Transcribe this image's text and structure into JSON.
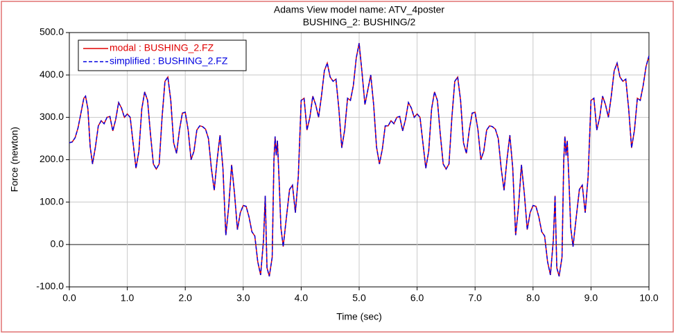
{
  "chart_data": {
    "type": "line",
    "title": "Adams View model name: ATV_4poster",
    "subtitle": "BUSHING_2: BUSHING/2",
    "x_label": "Time (sec)",
    "y_label": "Force (newton)",
    "x": [
      0,
      0.05,
      0.1,
      0.15,
      0.2,
      0.25,
      0.28,
      0.32,
      0.36,
      0.4,
      0.45,
      0.5,
      0.55,
      0.6,
      0.65,
      0.7,
      0.75,
      0.8,
      0.85,
      0.9,
      0.95,
      1.0,
      1.05,
      1.1,
      1.15,
      1.2,
      1.25,
      1.3,
      1.35,
      1.4,
      1.45,
      1.5,
      1.55,
      1.6,
      1.65,
      1.7,
      1.75,
      1.8,
      1.85,
      1.9,
      1.95,
      2.0,
      2.05,
      2.1,
      2.15,
      2.2,
      2.25,
      2.3,
      2.35,
      2.4,
      2.45,
      2.5,
      2.55,
      2.6,
      2.65,
      2.7,
      2.75,
      2.8,
      2.85,
      2.9,
      2.95,
      3.0,
      3.05,
      3.1,
      3.15,
      3.2,
      3.25,
      3.3,
      3.35,
      3.38,
      3.41,
      3.45,
      3.5,
      3.53,
      3.55,
      3.57,
      3.59,
      3.62,
      3.65,
      3.69,
      3.75,
      3.8,
      3.85,
      3.9,
      3.95,
      4.0,
      4.05,
      4.1,
      4.15,
      4.2,
      4.25,
      4.3,
      4.35,
      4.4,
      4.45,
      4.5,
      4.55,
      4.6,
      4.65,
      4.7,
      4.75,
      4.8,
      4.85,
      4.9,
      4.95,
      5.0,
      5.05,
      5.1,
      5.15,
      5.2,
      5.25,
      5.3,
      5.35,
      5.4,
      5.45,
      5.5,
      5.55,
      5.6,
      5.65,
      5.7,
      5.75,
      5.8,
      5.85,
      5.9,
      5.95,
      6.0,
      6.05,
      6.1,
      6.15,
      6.2,
      6.25,
      6.3,
      6.35,
      6.4,
      6.45,
      6.5,
      6.55,
      6.6,
      6.65,
      6.7,
      6.75,
      6.8,
      6.85,
      6.9,
      6.95,
      7.0,
      7.05,
      7.1,
      7.15,
      7.2,
      7.25,
      7.3,
      7.35,
      7.4,
      7.45,
      7.5,
      7.55,
      7.6,
      7.65,
      7.7,
      7.75,
      7.8,
      7.85,
      7.9,
      7.95,
      8.0,
      8.05,
      8.1,
      8.15,
      8.2,
      8.25,
      8.3,
      8.35,
      8.38,
      8.41,
      8.45,
      8.5,
      8.53,
      8.55,
      8.57,
      8.59,
      8.62,
      8.65,
      8.69,
      8.75,
      8.8,
      8.85,
      8.9,
      8.95,
      9.0,
      9.05,
      9.1,
      9.15,
      9.2,
      9.25,
      9.3,
      9.35,
      9.4,
      9.45,
      9.5,
      9.55,
      9.6,
      9.65,
      9.7,
      9.75,
      9.8,
      9.85,
      9.9,
      9.95,
      10.0
    ],
    "series": [
      {
        "name": "modal : BUSHING_2.FZ",
        "color": "#e00000",
        "dashed": false,
        "values": [
          240,
          242,
          252,
          275,
          310,
          345,
          350,
          320,
          230,
          190,
          230,
          280,
          292,
          285,
          300,
          302,
          268,
          295,
          335,
          322,
          300,
          308,
          300,
          240,
          180,
          220,
          320,
          360,
          340,
          260,
          190,
          178,
          190,
          300,
          385,
          395,
          340,
          240,
          215,
          270,
          310,
          312,
          270,
          200,
          220,
          270,
          280,
          278,
          272,
          250,
          180,
          128,
          200,
          258,
          180,
          22,
          90,
          188,
          120,
          35,
          75,
          92,
          90,
          65,
          30,
          20,
          -40,
          -72,
          10,
          115,
          -55,
          -75,
          -30,
          200,
          255,
          210,
          245,
          150,
          40,
          -5,
          70,
          130,
          140,
          75,
          160,
          340,
          345,
          270,
          300,
          350,
          330,
          300,
          350,
          410,
          428,
          395,
          385,
          390,
          320,
          228,
          270,
          345,
          340,
          375,
          440,
          475,
          405,
          330,
          365,
          400,
          330,
          230,
          190,
          225,
          280,
          280,
          292,
          285,
          300,
          302,
          268,
          295,
          335,
          322,
          300,
          308,
          300,
          240,
          180,
          220,
          320,
          360,
          340,
          260,
          190,
          178,
          190,
          300,
          385,
          395,
          340,
          240,
          215,
          270,
          310,
          312,
          270,
          200,
          220,
          270,
          280,
          278,
          272,
          250,
          180,
          128,
          200,
          258,
          180,
          22,
          90,
          188,
          120,
          35,
          75,
          92,
          90,
          65,
          30,
          20,
          -40,
          -72,
          10,
          115,
          -55,
          -75,
          -30,
          200,
          255,
          210,
          245,
          150,
          40,
          -5,
          70,
          130,
          140,
          75,
          160,
          340,
          345,
          270,
          300,
          350,
          330,
          300,
          350,
          410,
          428,
          395,
          385,
          390,
          320,
          228,
          270,
          345,
          340,
          375,
          420,
          445
        ]
      },
      {
        "name": "simplified : BUSHING_2.FZ",
        "color": "#0000e0",
        "dashed": true,
        "values": [
          240,
          242,
          252,
          275,
          310,
          345,
          350,
          320,
          230,
          190,
          230,
          280,
          292,
          285,
          300,
          302,
          268,
          295,
          335,
          322,
          300,
          308,
          300,
          240,
          180,
          220,
          320,
          360,
          340,
          260,
          190,
          178,
          190,
          300,
          385,
          395,
          340,
          240,
          215,
          270,
          310,
          312,
          270,
          200,
          220,
          270,
          280,
          278,
          272,
          250,
          180,
          128,
          200,
          258,
          180,
          22,
          90,
          188,
          120,
          35,
          75,
          92,
          90,
          65,
          30,
          20,
          -40,
          -72,
          10,
          115,
          -55,
          -75,
          -30,
          200,
          255,
          210,
          245,
          150,
          40,
          -5,
          70,
          130,
          140,
          75,
          160,
          340,
          345,
          270,
          300,
          350,
          330,
          300,
          350,
          410,
          428,
          395,
          385,
          390,
          320,
          228,
          270,
          345,
          340,
          375,
          440,
          475,
          405,
          330,
          365,
          400,
          330,
          230,
          190,
          225,
          280,
          280,
          292,
          285,
          300,
          302,
          268,
          295,
          335,
          322,
          300,
          308,
          300,
          240,
          180,
          220,
          320,
          360,
          340,
          260,
          190,
          178,
          190,
          300,
          385,
          395,
          340,
          240,
          215,
          270,
          310,
          312,
          270,
          200,
          220,
          270,
          280,
          278,
          272,
          250,
          180,
          128,
          200,
          258,
          180,
          22,
          90,
          188,
          120,
          35,
          75,
          92,
          90,
          65,
          30,
          20,
          -40,
          -72,
          10,
          115,
          -55,
          -75,
          -30,
          200,
          255,
          210,
          245,
          150,
          40,
          -5,
          70,
          130,
          140,
          75,
          160,
          340,
          345,
          270,
          300,
          350,
          330,
          300,
          350,
          410,
          428,
          395,
          385,
          390,
          320,
          228,
          270,
          345,
          340,
          375,
          420,
          445
        ]
      }
    ],
    "xlim": [
      0,
      10
    ],
    "ylim": [
      -100,
      500
    ],
    "xticks": [
      {
        "value": 0,
        "label": "0.0"
      },
      {
        "value": 1,
        "label": "1.0"
      },
      {
        "value": 2,
        "label": "2.0"
      },
      {
        "value": 3,
        "label": "3.0"
      },
      {
        "value": 4,
        "label": "4.0"
      },
      {
        "value": 5,
        "label": "5.0"
      },
      {
        "value": 6,
        "label": "6.0"
      },
      {
        "value": 7,
        "label": "7.0"
      },
      {
        "value": 8,
        "label": "8.0"
      },
      {
        "value": 9,
        "label": "9.0"
      },
      {
        "value": 10,
        "label": "10.0"
      }
    ],
    "yticks": [
      {
        "value": -100,
        "label": "-100.0"
      },
      {
        "value": 0,
        "label": "0.0"
      },
      {
        "value": 100,
        "label": "100.0"
      },
      {
        "value": 200,
        "label": "200.0"
      },
      {
        "value": 300,
        "label": "300.0"
      },
      {
        "value": 400,
        "label": "400.0"
      },
      {
        "value": 500,
        "label": "500.0"
      }
    ],
    "grid": true,
    "legend": "upper left"
  }
}
